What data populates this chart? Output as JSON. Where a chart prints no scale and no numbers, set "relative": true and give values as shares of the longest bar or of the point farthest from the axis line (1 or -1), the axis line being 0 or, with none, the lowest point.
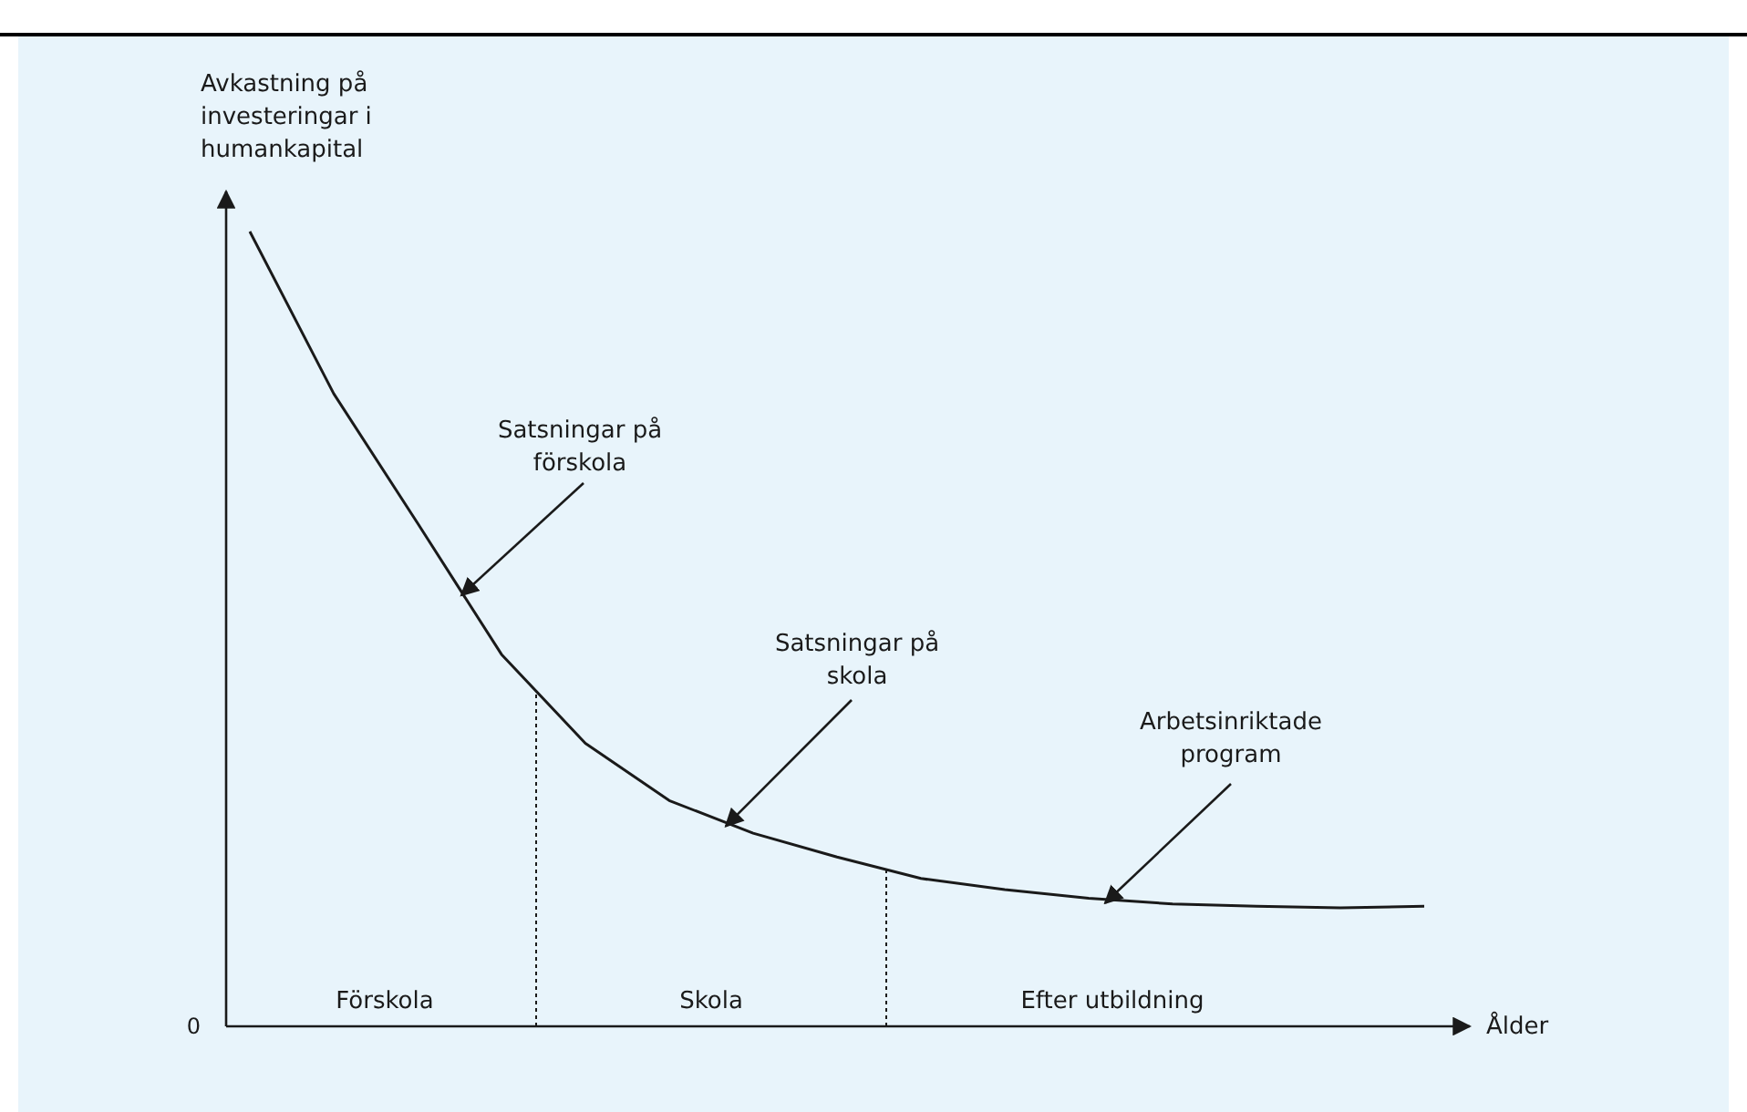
{
  "chart_data": {
    "type": "line",
    "relative": true,
    "ylabel": "Avkastning på investeringar i humankapital",
    "xlabel": "Ålder",
    "categories": [
      null,
      null,
      null,
      null,
      null,
      null,
      null,
      null,
      null,
      null,
      null,
      null,
      null,
      null,
      null
    ],
    "series": [
      {
        "color": "#1a1a1a",
        "values": [
          1.0,
          0.796,
          0.633,
          0.468,
          0.356,
          0.284,
          0.243,
          0.213,
          0.186,
          0.172,
          0.161,
          0.154,
          0.151,
          0.149,
          0.151
        ]
      }
    ],
    "annotations": [
      "0",
      "Förskola",
      "Skola",
      "Efter utbildning",
      "Satsningar på förskola",
      "Satsningar på skola",
      "Arbetsinriktade program"
    ]
  }
}
